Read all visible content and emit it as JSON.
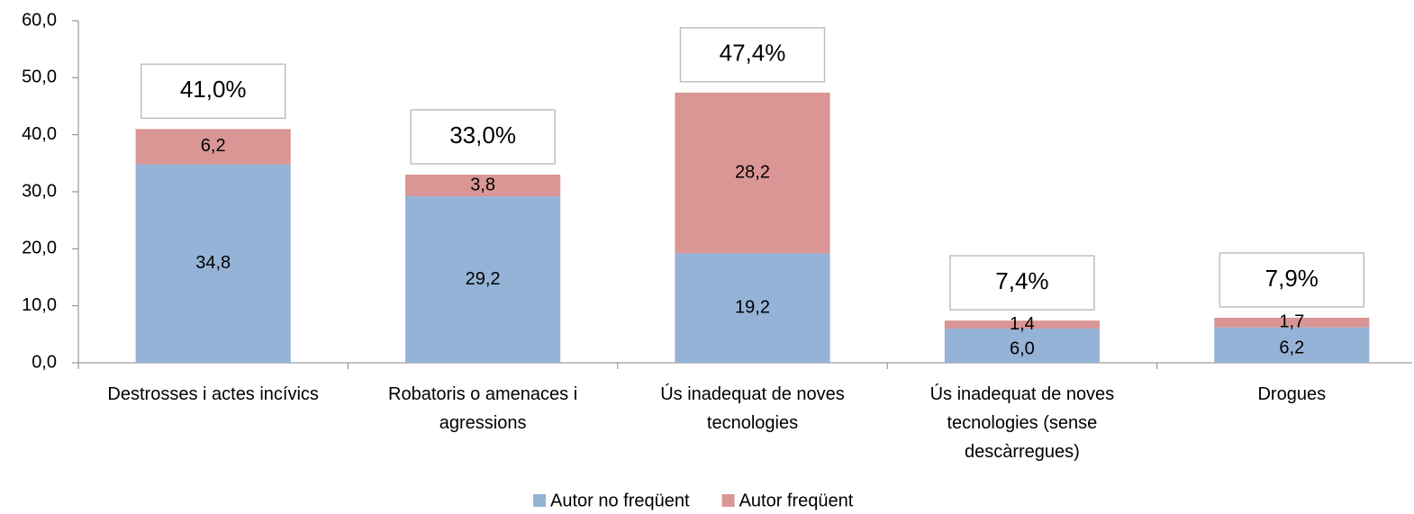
{
  "chart_data": {
    "type": "stacked_bar",
    "categories": [
      "Destrosses i actes incívics",
      "Robatoris o amenaces i agressions",
      "Ús inadequat de noves tecnologies",
      "Ús inadequat de noves tecnologies (sense descàrregues)",
      "Drogues"
    ],
    "series": [
      {
        "name": "Autor no freqüent",
        "color": "#95b3d7",
        "values": [
          34.8,
          29.2,
          19.2,
          6.0,
          6.2
        ],
        "value_labels": [
          "34,8",
          "29,2",
          "19,2",
          "6,0",
          "6,2"
        ]
      },
      {
        "name": "Autor freqüent",
        "color": "#d99694",
        "values": [
          6.2,
          3.8,
          28.2,
          1.4,
          1.7
        ],
        "value_labels": [
          "6,2",
          "3,8",
          "28,2",
          "1,4",
          "1,7"
        ]
      }
    ],
    "total_labels": [
      "41,0%",
      "33,0%",
      "47,4%",
      "7,4%",
      "7,9%"
    ],
    "ylim": [
      0,
      60
    ],
    "yticks": [
      {
        "value": 0,
        "label": "0,0"
      },
      {
        "value": 10,
        "label": "10,0"
      },
      {
        "value": 20,
        "label": "20,0"
      },
      {
        "value": 30,
        "label": "30,0"
      },
      {
        "value": 40,
        "label": "40,0"
      },
      {
        "value": 50,
        "label": "50,0"
      },
      {
        "value": 60,
        "label": "60,0"
      }
    ],
    "legend": "bottom"
  }
}
